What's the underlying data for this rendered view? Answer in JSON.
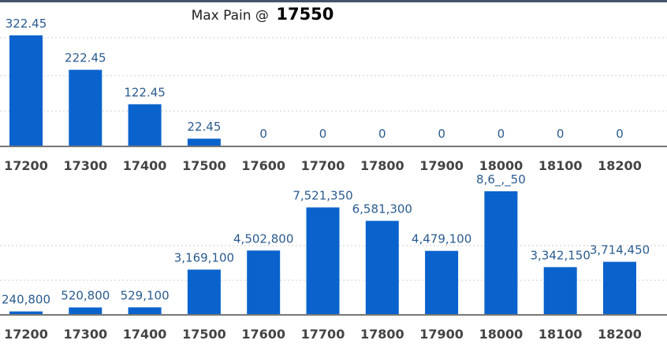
{
  "header": {
    "title_prefix": "Max Pain @",
    "title_value": "17550"
  },
  "colors": {
    "bar": "#0a63cc",
    "label": "#2a5b8f",
    "axis": "#777777",
    "grid": "#cccccc"
  },
  "chart_data": [
    {
      "type": "bar",
      "categories": [
        "17200",
        "17300",
        "17400",
        "17500",
        "17600",
        "17700",
        "17800",
        "17900",
        "18000",
        "18100",
        "18200"
      ],
      "values": [
        322.45,
        222.45,
        122.45,
        22.45,
        0,
        0,
        0,
        0,
        0,
        0,
        0
      ],
      "labels": [
        "322.45",
        "222.45",
        "122.45",
        "22.45",
        "0",
        "0",
        "0",
        "0",
        "0",
        "0",
        "0"
      ],
      "ylim": [
        0,
        425
      ],
      "grid": true
    },
    {
      "type": "bar",
      "categories": [
        "17200",
        "17300",
        "17400",
        "17500",
        "17600",
        "17700",
        "17800",
        "17900",
        "18000",
        "18100",
        "18200"
      ],
      "values": [
        240800,
        520800,
        529100,
        3169100,
        4502800,
        7521350,
        6581300,
        4479100,
        8650050,
        3342150,
        3714450
      ],
      "labels": [
        "240,800",
        "520,800",
        "529,100",
        "3,169,100",
        "4,502,800",
        "7,521,350",
        "6,581,300",
        "4,479,100",
        "8,6_,_50",
        "3,342,150",
        "3,714,450"
      ],
      "ylim": [
        0,
        8650050
      ],
      "grid": true
    }
  ]
}
